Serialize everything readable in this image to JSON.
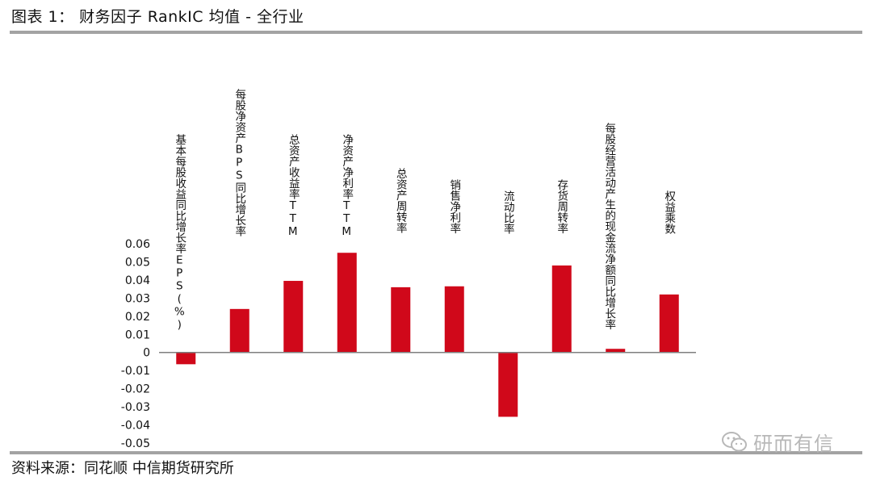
{
  "figure": {
    "title": "图表 1： 财务因子 RankIC 均值 - 全行业",
    "source": "资料来源：同花顺   中信期货研究所",
    "watermark": "研而有信"
  },
  "colors": {
    "bar": "#d0081a",
    "axis": "#7f7f7f",
    "rule": "#a3a3a3"
  },
  "chart_data": {
    "type": "bar",
    "categories": [
      "基本每股收益同比增长率EPS(%)",
      "每股净资产BPS同比增长率",
      "总资产收益率TTM",
      "净资产净利率TTM",
      "总资产周转率",
      "销售净利率",
      "流动比率",
      "存货周转率",
      "每股经营活动产生的现金流净额同比增长率",
      "权益乘数"
    ],
    "values": [
      -0.0065,
      0.024,
      0.0395,
      0.055,
      0.036,
      0.0365,
      -0.0355,
      0.048,
      0.002,
      0.032
    ],
    "ylim": [
      -0.05,
      0.06
    ],
    "yticks": [
      "0.06",
      "0.05",
      "0.04",
      "0.03",
      "0.02",
      "0.01",
      "0",
      "-0.01",
      "-0.02",
      "-0.03",
      "-0.04",
      "-0.05"
    ],
    "ytick_values": [
      0.06,
      0.05,
      0.04,
      0.03,
      0.02,
      0.01,
      0,
      -0.01,
      -0.02,
      -0.03,
      -0.04,
      -0.05
    ],
    "title": "",
    "xlabel": "",
    "ylabel": "",
    "grid": false,
    "legend": "none"
  }
}
